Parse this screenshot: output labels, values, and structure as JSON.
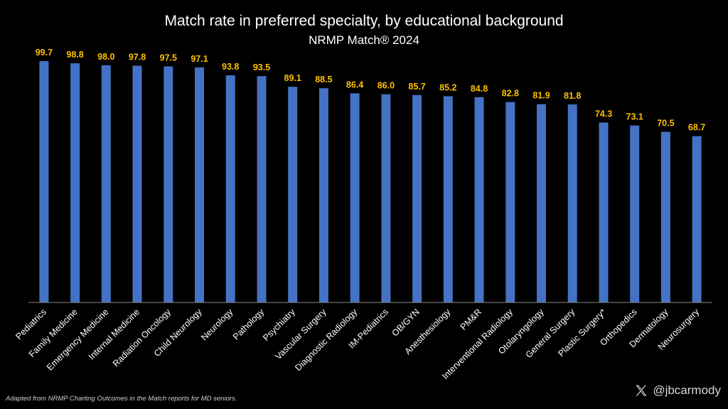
{
  "chart_data": {
    "type": "bar",
    "title": "Match rate in preferred specialty, by educational background",
    "subtitle": "NRMP Match® 2024",
    "categories": [
      "Pediatrics",
      "Family Medicine",
      "Emergency Medicine",
      "Internal Medicine",
      "Radiation Oncology",
      "Child Neurology",
      "Neurology",
      "Pathology",
      "Psychiatry",
      "Vascular Surgery",
      "Diagnostic Radiology",
      "IM-Pediatrics",
      "OB/GYN",
      "Anesthesiology",
      "PM&R",
      "Interventional Radiology",
      "Otolaryngology",
      "General Surgery",
      "Plastic Surgery*",
      "Orthopedics",
      "Dermatology",
      "Neurosurgery"
    ],
    "values": [
      99.7,
      98.8,
      98.0,
      97.8,
      97.5,
      97.1,
      93.8,
      93.5,
      89.1,
      88.5,
      86.4,
      86.0,
      85.7,
      85.2,
      84.8,
      82.8,
      81.9,
      81.8,
      74.3,
      73.1,
      70.5,
      68.7
    ],
    "value_labels": [
      "99.7",
      "98.8",
      "98.0",
      "97.8",
      "97.5",
      "97.1",
      "93.8",
      "93.5",
      "89.1",
      "88.5",
      "86.4",
      "86.0",
      "85.7",
      "85.2",
      "84.8",
      "82.8",
      "81.9",
      "81.8",
      "74.3",
      "73.1",
      "70.5",
      "68.7"
    ],
    "xlabel": "",
    "ylabel": "",
    "ylim": [
      0,
      100
    ],
    "grid": false,
    "bar_color": "#4472C4",
    "label_color": "#FFC000",
    "axis_color": "#888888"
  },
  "footnote": "Adapted from NRMP Charting Outcomes in the Match reports for MD seniors.",
  "handle": {
    "icon": "x-logo-icon",
    "text": "@jbcarmody"
  }
}
